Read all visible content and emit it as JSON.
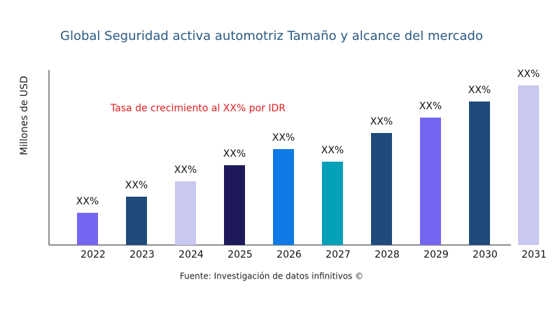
{
  "chart_data": {
    "type": "bar",
    "title": "Global Seguridad activa automotriz Tamaño y alcance del mercado",
    "y_label": "Millones de USD",
    "annotation": "Tasa de crecimiento al XX% por IDR",
    "source": "Fuente: Investigación de datos infinitivos ©",
    "categories": [
      "2022",
      "2023",
      "2024",
      "2025",
      "2026",
      "2027",
      "2028",
      "2029",
      "2030",
      "2031"
    ],
    "values": [
      46,
      69,
      91,
      114,
      137,
      119,
      160,
      182,
      205,
      228
    ],
    "value_labels": [
      "XX%",
      "XX%",
      "XX%",
      "XX%",
      "XX%",
      "XX%",
      "XX%",
      "XX%",
      "XX%",
      "XX%"
    ],
    "colors": [
      "#7466f0",
      "#1f4a7a",
      "#c8c8f0",
      "#1e1a5a",
      "#0f7ae5",
      "#03a0b8",
      "#1f4a7a",
      "#7466f0",
      "#1f4a7a",
      "#c8c8f0"
    ],
    "ylim": [
      0,
      250
    ]
  }
}
